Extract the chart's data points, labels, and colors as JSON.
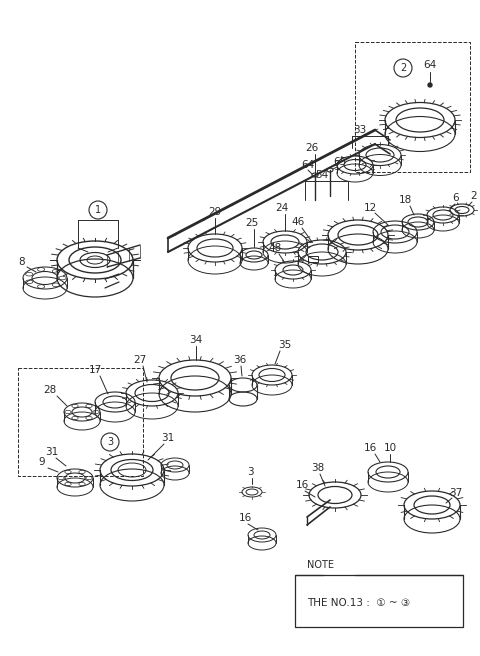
{
  "bg_color": "#ffffff",
  "line_color": "#2a2a2a",
  "fig_width": 4.8,
  "fig_height": 6.56,
  "dpi": 100,
  "note_text": "NOTE",
  "note_body": "THE NO.13 :  ① ~ ③"
}
